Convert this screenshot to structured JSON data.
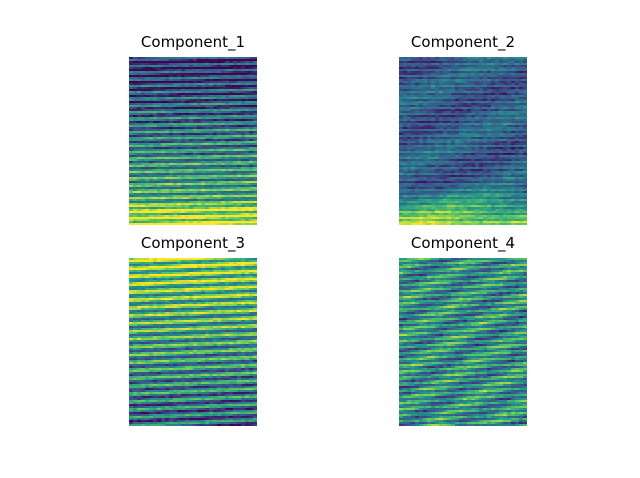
{
  "figure": {
    "colormap": [
      "#440154",
      "#3b528b",
      "#21918c",
      "#5ec962",
      "#fde725"
    ],
    "panels": [
      {
        "title": "Component_1"
      },
      {
        "title": "Component_2"
      },
      {
        "title": "Component_3"
      },
      {
        "title": "Component_4"
      }
    ]
  }
}
